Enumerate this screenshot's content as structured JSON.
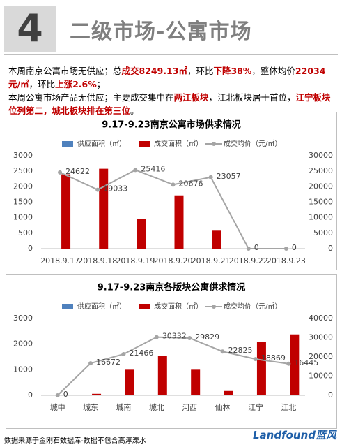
{
  "header": {
    "number": "4",
    "title": "二级市场-公寓市场"
  },
  "paragraphs": [
    [
      {
        "text": "本周南京公寓市场无供应；总",
        "emphasis": false
      },
      {
        "text": "成交8249.13㎡",
        "emphasis": true
      },
      {
        "text": "，环比",
        "emphasis": false
      },
      {
        "text": "下降38%",
        "emphasis": true
      },
      {
        "text": "，整体均价",
        "emphasis": false
      },
      {
        "text": "22034元/㎡",
        "emphasis": true
      },
      {
        "text": "，环比",
        "emphasis": false
      },
      {
        "text": "上涨2.6%",
        "emphasis": true
      },
      {
        "text": "；",
        "emphasis": false
      }
    ],
    [
      {
        "text": "本周公寓市场产品无供应；主要成交集中在",
        "emphasis": false
      },
      {
        "text": "两江板块",
        "emphasis": true
      },
      {
        "text": "，江北板块居于首位，",
        "emphasis": false
      },
      {
        "text": "江宁板块位列第二，城北板块排在第三位",
        "emphasis": true
      },
      {
        "text": "。",
        "emphasis": false
      }
    ]
  ],
  "chart_data": [
    {
      "type": "bar-line",
      "title": "9.17-9.23南京公寓市场供求情况",
      "categories": [
        "2018.9.17",
        "2018.9.18",
        "2018.9.19",
        "2018.9.20",
        "2018.9.21",
        "2018.9.22",
        "2018.9.23"
      ],
      "series": [
        {
          "name": "供应面积（㎡）",
          "color": "#4f81bd",
          "kind": "bar",
          "values": [
            0,
            0,
            0,
            0,
            0,
            0,
            0
          ]
        },
        {
          "name": "成交面积（㎡）",
          "color": "#c00000",
          "kind": "bar",
          "values": [
            2400,
            2580,
            950,
            1720,
            580,
            0,
            0
          ]
        },
        {
          "name": "成交均价（元/㎡）",
          "color": "#a5a5a5",
          "kind": "line",
          "axis": "y2",
          "labels": true,
          "values": [
            24622,
            19033,
            25416,
            20676,
            23057,
            0,
            0
          ]
        }
      ],
      "ylim": [
        0,
        3000
      ],
      "yticks": [
        0,
        500,
        1000,
        1500,
        2000,
        2500,
        3000
      ],
      "y2lim": [
        0,
        30000
      ],
      "y2ticks": [
        0,
        5000,
        10000,
        15000,
        20000,
        25000,
        30000
      ]
    },
    {
      "type": "bar-line",
      "title": "9.17-9.23南京各版块公寓供求情况",
      "categories": [
        "城中",
        "城东",
        "城南",
        "城北",
        "河西",
        "仙林",
        "江宁",
        "江北"
      ],
      "series": [
        {
          "name": "供应面积（㎡）",
          "color": "#4f81bd",
          "kind": "bar",
          "values": [
            0,
            0,
            0,
            0,
            0,
            0,
            0,
            0
          ]
        },
        {
          "name": "成交面积（㎡）",
          "color": "#c00000",
          "kind": "bar",
          "values": [
            0,
            60,
            1000,
            1550,
            1000,
            170,
            2100,
            2380
          ]
        },
        {
          "name": "成交均价（元/㎡）",
          "color": "#a5a5a5",
          "kind": "line",
          "axis": "y2",
          "labels": true,
          "values": [
            0,
            16672,
            21466,
            30332,
            29829,
            22825,
            18869,
            16445
          ]
        }
      ],
      "ylim": [
        0,
        3000
      ],
      "yticks": [
        0,
        1000,
        2000,
        3000
      ],
      "y2lim": [
        0,
        40000
      ],
      "y2ticks": [
        0,
        10000,
        20000,
        30000,
        40000
      ]
    }
  ],
  "footer": {
    "source": "数据来源于金刚石数据库-数据不包含高淳溧水",
    "logo": "Landfound蓝风"
  }
}
